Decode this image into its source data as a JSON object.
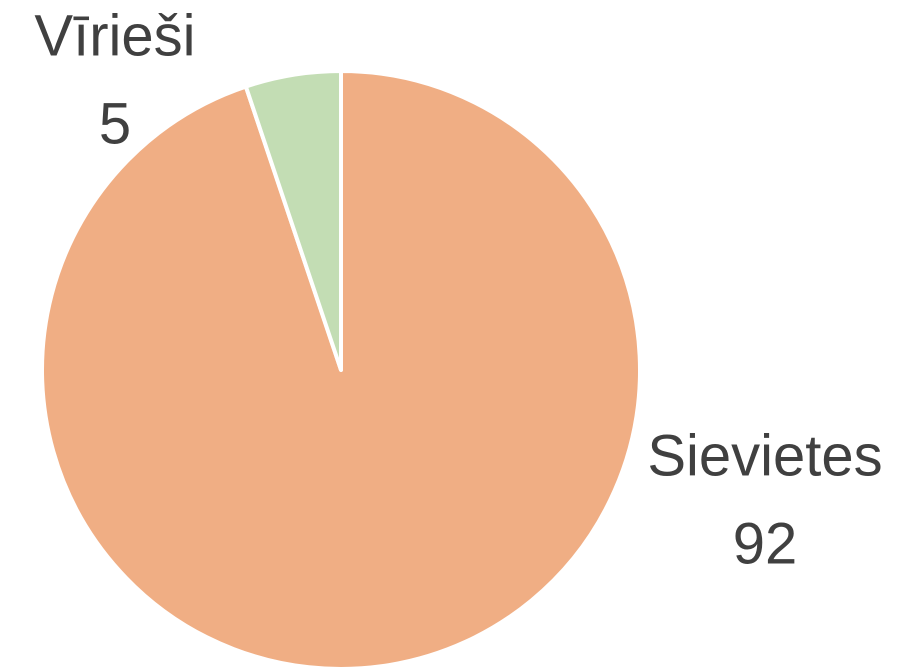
{
  "chart_data": {
    "type": "pie",
    "categories": [
      "Sievietes",
      "Vīrieši"
    ],
    "values": [
      92,
      5
    ],
    "colors": [
      "#f0ae84",
      "#c3ddb4"
    ]
  }
}
